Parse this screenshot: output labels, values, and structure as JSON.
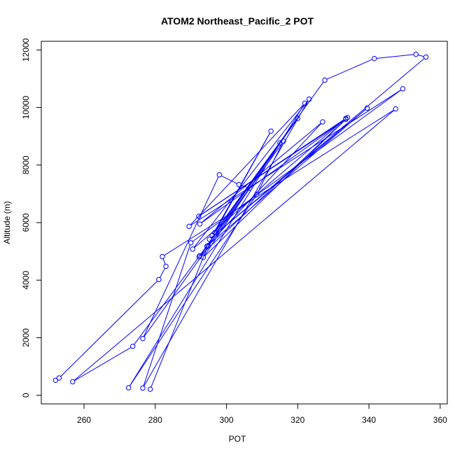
{
  "chart_data": {
    "type": "line",
    "title": "ATOM2 Northeast_Pacific_2 POT",
    "xlabel": "POT",
    "ylabel": "Altitude (m)",
    "xlim": [
      248,
      362
    ],
    "ylim": [
      -300,
      12300
    ],
    "xticks": [
      260,
      280,
      300,
      320,
      340,
      360
    ],
    "yticks": [
      0,
      2000,
      4000,
      6000,
      8000,
      10000,
      12000
    ],
    "grid": false,
    "legend": "none",
    "colors": {
      "series": "#0000ff",
      "axes": "#000000"
    },
    "series": [
      {
        "marker": "open-circle",
        "points": [
          [
            252.0,
            520
          ],
          [
            253.0,
            600
          ],
          [
            281.0,
            4020
          ],
          [
            283.0,
            4480
          ],
          [
            282.0,
            4820
          ],
          [
            347.5,
            9950
          ],
          [
            256.8,
            470
          ],
          [
            273.7,
            1700
          ],
          [
            306.5,
            7200
          ],
          [
            303.5,
            7320
          ],
          [
            298.0,
            7660
          ],
          [
            276.5,
            1970
          ],
          [
            316.0,
            8830
          ],
          [
            308.5,
            6980
          ],
          [
            272.5,
            260
          ],
          [
            322.0,
            10150
          ],
          [
            289.5,
            5870
          ],
          [
            349.5,
            10650
          ],
          [
            290.0,
            5300
          ],
          [
            276.5,
            250
          ],
          [
            323.2,
            10290
          ],
          [
            290.5,
            5080
          ],
          [
            333.5,
            9620
          ],
          [
            292.2,
            6220
          ],
          [
            333.5,
            9590
          ],
          [
            292.5,
            5950
          ],
          [
            327.0,
            9500
          ],
          [
            294.5,
            5180
          ],
          [
            339.5,
            9980
          ],
          [
            295.2,
            5420
          ],
          [
            356.0,
            11750
          ],
          [
            353.2,
            11850
          ],
          [
            341.5,
            11700
          ],
          [
            327.6,
            10950
          ],
          [
            296.0,
            5550
          ],
          [
            312.5,
            9180
          ],
          [
            296.7,
            5650
          ],
          [
            320.0,
            9620
          ],
          [
            292.5,
            4850
          ],
          [
            315.0,
            8770
          ],
          [
            293.5,
            4790
          ],
          [
            334.0,
            9650
          ],
          [
            292.3,
            4810
          ],
          [
            294.8,
            5200
          ],
          [
            278.6,
            210
          ]
        ]
      }
    ]
  }
}
